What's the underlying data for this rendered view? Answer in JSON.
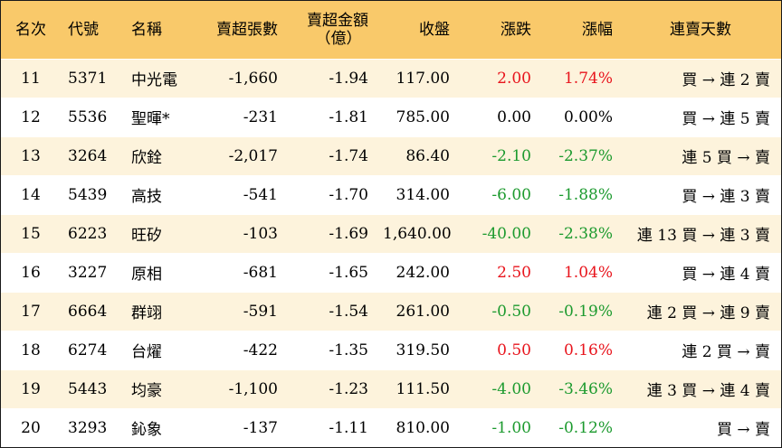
{
  "headers": {
    "rank": "名次",
    "code": "代號",
    "name": "名稱",
    "lots": "賣超張數",
    "amount_line1": "賣超金額",
    "amount_line2": "（億）",
    "close": "收盤",
    "change": "漲跌",
    "pct": "漲幅",
    "streak": "連賣天數"
  },
  "colors": {
    "header_bg": "#f9c96a",
    "odd_row_bg": "#fdf3dc",
    "up": "#e8141c",
    "down": "#1c9a2e"
  },
  "rows": [
    {
      "rank": "11",
      "code": "5371",
      "name": "中光電",
      "lots": "-1,660",
      "amount": "-1.94",
      "close": "117.00",
      "change": "2.00",
      "pct": "1.74%",
      "dir": "up",
      "streak": "買 → 連 2 賣"
    },
    {
      "rank": "12",
      "code": "5536",
      "name": "聖暉*",
      "lots": "-231",
      "amount": "-1.81",
      "close": "785.00",
      "change": "0.00",
      "pct": "0.00%",
      "dir": "flat",
      "streak": "買 → 連 5 賣"
    },
    {
      "rank": "13",
      "code": "3264",
      "name": "欣銓",
      "lots": "-2,017",
      "amount": "-1.74",
      "close": "86.40",
      "change": "-2.10",
      "pct": "-2.37%",
      "dir": "down",
      "streak": "連 5 買 → 賣"
    },
    {
      "rank": "14",
      "code": "5439",
      "name": "高技",
      "lots": "-541",
      "amount": "-1.70",
      "close": "314.00",
      "change": "-6.00",
      "pct": "-1.88%",
      "dir": "down",
      "streak": "買 → 連 3 賣"
    },
    {
      "rank": "15",
      "code": "6223",
      "name": "旺矽",
      "lots": "-103",
      "amount": "-1.69",
      "close": "1,640.00",
      "change": "-40.00",
      "pct": "-2.38%",
      "dir": "down",
      "streak": "連 13 買 → 連 3 賣"
    },
    {
      "rank": "16",
      "code": "3227",
      "name": "原相",
      "lots": "-681",
      "amount": "-1.65",
      "close": "242.00",
      "change": "2.50",
      "pct": "1.04%",
      "dir": "up",
      "streak": "買 → 連 4 賣"
    },
    {
      "rank": "17",
      "code": "6664",
      "name": "群翊",
      "lots": "-591",
      "amount": "-1.54",
      "close": "261.00",
      "change": "-0.50",
      "pct": "-0.19%",
      "dir": "down",
      "streak": "連 2 買 → 連 9 賣"
    },
    {
      "rank": "18",
      "code": "6274",
      "name": "台燿",
      "lots": "-422",
      "amount": "-1.35",
      "close": "319.50",
      "change": "0.50",
      "pct": "0.16%",
      "dir": "up",
      "streak": "連 2 買 → 賣"
    },
    {
      "rank": "19",
      "code": "5443",
      "name": "均豪",
      "lots": "-1,100",
      "amount": "-1.23",
      "close": "111.50",
      "change": "-4.00",
      "pct": "-3.46%",
      "dir": "down",
      "streak": "連 3 買 → 連 4 賣"
    },
    {
      "rank": "20",
      "code": "3293",
      "name": "鈊象",
      "lots": "-137",
      "amount": "-1.11",
      "close": "810.00",
      "change": "-1.00",
      "pct": "-0.12%",
      "dir": "down",
      "streak": "買 → 賣"
    }
  ]
}
